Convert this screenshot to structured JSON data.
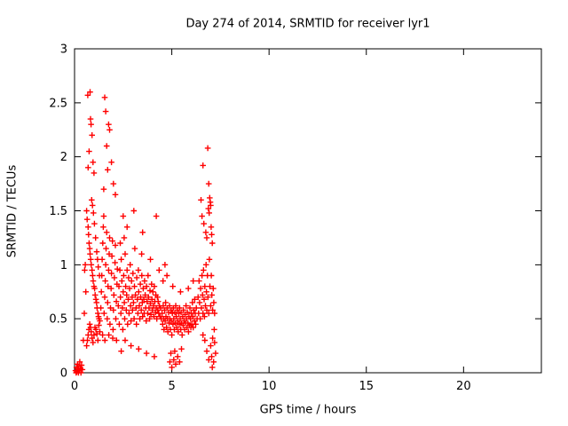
{
  "chart_data": {
    "type": "scatter",
    "title": "Day 274 of 2014, SRMTID for receiver lyr1",
    "xlabel": "GPS time / hours",
    "ylabel": "SRMTID / TECUs",
    "xlim": [
      0,
      24
    ],
    "ylim": [
      0,
      3
    ],
    "xticks": [
      {
        "v": 0,
        "label": "0"
      },
      {
        "v": 5,
        "label": "5"
      },
      {
        "v": 10,
        "label": "10"
      },
      {
        "v": 15,
        "label": "15"
      },
      {
        "v": 20,
        "label": "20"
      }
    ],
    "yticks": [
      {
        "v": 0,
        "label": "0"
      },
      {
        "v": 0.5,
        "label": "0.5"
      },
      {
        "v": 1,
        "label": "1"
      },
      {
        "v": 1.5,
        "label": "1.5"
      },
      {
        "v": 2,
        "label": "2"
      },
      {
        "v": 2.5,
        "label": "2.5"
      },
      {
        "v": 3,
        "label": "3"
      }
    ],
    "grid": false,
    "legend": "none",
    "marker": "plus",
    "marker_color": "#ff0000",
    "points": [
      [
        0.05,
        0.02
      ],
      [
        0.08,
        0.0
      ],
      [
        0.1,
        0.05
      ],
      [
        0.12,
        0.01
      ],
      [
        0.15,
        0.08
      ],
      [
        0.17,
        0.03
      ],
      [
        0.2,
        0.0
      ],
      [
        0.22,
        0.06
      ],
      [
        0.25,
        0.02
      ],
      [
        0.27,
        0.1
      ],
      [
        0.3,
        0.04
      ],
      [
        0.33,
        0.0
      ],
      [
        0.36,
        0.07
      ],
      [
        0.4,
        0.03
      ],
      [
        0.45,
        0.3
      ],
      [
        0.5,
        0.55
      ],
      [
        0.52,
        0.95
      ],
      [
        0.55,
        1.0
      ],
      [
        0.58,
        0.75
      ],
      [
        0.68,
        2.57
      ],
      [
        0.8,
        2.6
      ],
      [
        0.82,
        2.35
      ],
      [
        0.85,
        2.3
      ],
      [
        0.9,
        2.2
      ],
      [
        0.75,
        2.05
      ],
      [
        0.95,
        1.95
      ],
      [
        0.7,
        1.9
      ],
      [
        1.0,
        1.85
      ],
      [
        0.62,
        1.5
      ],
      [
        0.65,
        1.42
      ],
      [
        0.7,
        1.35
      ],
      [
        0.72,
        1.28
      ],
      [
        0.75,
        1.2
      ],
      [
        0.78,
        1.15
      ],
      [
        0.8,
        1.1
      ],
      [
        0.83,
        1.05
      ],
      [
        0.86,
        1.0
      ],
      [
        0.9,
        0.95
      ],
      [
        0.93,
        0.9
      ],
      [
        0.96,
        0.85
      ],
      [
        1.0,
        0.8
      ],
      [
        1.03,
        0.78
      ],
      [
        1.06,
        0.72
      ],
      [
        1.1,
        0.68
      ],
      [
        1.13,
        0.65
      ],
      [
        1.16,
        0.6
      ],
      [
        1.2,
        0.55
      ],
      [
        1.23,
        0.52
      ],
      [
        1.26,
        0.5
      ],
      [
        1.3,
        0.48
      ],
      [
        0.62,
        0.25
      ],
      [
        0.66,
        0.3
      ],
      [
        0.7,
        0.35
      ],
      [
        0.74,
        0.4
      ],
      [
        0.78,
        0.45
      ],
      [
        0.82,
        0.42
      ],
      [
        0.86,
        0.38
      ],
      [
        0.9,
        0.32
      ],
      [
        0.95,
        0.28
      ],
      [
        1.0,
        0.35
      ],
      [
        1.05,
        0.42
      ],
      [
        1.1,
        0.4
      ],
      [
        1.15,
        0.36
      ],
      [
        1.2,
        0.3
      ],
      [
        1.25,
        0.44
      ],
      [
        1.3,
        0.38
      ],
      [
        0.88,
        1.6
      ],
      [
        0.92,
        1.55
      ],
      [
        0.97,
        1.48
      ],
      [
        1.02,
        1.38
      ],
      [
        1.08,
        1.25
      ],
      [
        1.14,
        1.12
      ],
      [
        1.18,
        1.05
      ],
      [
        1.22,
        0.98
      ],
      [
        1.28,
        0.9
      ],
      [
        1.55,
        2.55
      ],
      [
        1.6,
        2.42
      ],
      [
        1.75,
        2.3
      ],
      [
        1.8,
        2.25
      ],
      [
        1.65,
        2.1
      ],
      [
        1.9,
        1.95
      ],
      [
        1.7,
        1.88
      ],
      [
        2.0,
        1.75
      ],
      [
        1.5,
        1.7
      ],
      [
        2.1,
        1.65
      ],
      [
        1.35,
        0.6
      ],
      [
        1.38,
        0.75
      ],
      [
        1.4,
        0.9
      ],
      [
        1.42,
        1.05
      ],
      [
        1.45,
        1.2
      ],
      [
        1.48,
        1.35
      ],
      [
        1.5,
        1.45
      ],
      [
        1.52,
        0.55
      ],
      [
        1.55,
        0.7
      ],
      [
        1.58,
        0.85
      ],
      [
        1.6,
        1.0
      ],
      [
        1.62,
        1.15
      ],
      [
        1.65,
        1.3
      ],
      [
        1.68,
        0.5
      ],
      [
        1.7,
        0.65
      ],
      [
        1.72,
        0.8
      ],
      [
        1.75,
        0.95
      ],
      [
        1.78,
        1.1
      ],
      [
        1.8,
        1.25
      ],
      [
        1.82,
        0.45
      ],
      [
        1.85,
        0.6
      ],
      [
        1.88,
        0.78
      ],
      [
        1.9,
        0.92
      ],
      [
        1.92,
        1.08
      ],
      [
        1.95,
        1.22
      ],
      [
        1.98,
        0.4
      ],
      [
        2.0,
        0.58
      ],
      [
        2.02,
        0.72
      ],
      [
        2.05,
        0.88
      ],
      [
        2.08,
        1.02
      ],
      [
        2.1,
        1.18
      ],
      [
        2.12,
        0.5
      ],
      [
        2.15,
        0.66
      ],
      [
        2.18,
        0.82
      ],
      [
        2.2,
        0.96
      ],
      [
        1.44,
        0.35
      ],
      [
        1.56,
        0.3
      ],
      [
        1.76,
        0.35
      ],
      [
        1.96,
        0.32
      ],
      [
        2.16,
        0.3
      ],
      [
        2.25,
        0.62
      ],
      [
        2.28,
        0.8
      ],
      [
        2.3,
        0.45
      ],
      [
        2.33,
        0.95
      ],
      [
        2.36,
        0.7
      ],
      [
        2.38,
        0.55
      ],
      [
        2.4,
        1.05
      ],
      [
        2.43,
        0.85
      ],
      [
        2.46,
        0.6
      ],
      [
        2.48,
        0.4
      ],
      [
        2.5,
        0.75
      ],
      [
        2.53,
        0.9
      ],
      [
        2.56,
        0.65
      ],
      [
        2.58,
        0.5
      ],
      [
        2.6,
        1.1
      ],
      [
        2.63,
        0.8
      ],
      [
        2.66,
        0.58
      ],
      [
        2.68,
        0.72
      ],
      [
        2.7,
        0.95
      ],
      [
        2.73,
        0.45
      ],
      [
        2.76,
        0.68
      ],
      [
        2.78,
        0.88
      ],
      [
        2.8,
        0.55
      ],
      [
        2.83,
        0.78
      ],
      [
        2.86,
        1.0
      ],
      [
        2.88,
        0.62
      ],
      [
        2.9,
        0.48
      ],
      [
        2.93,
        0.85
      ],
      [
        2.96,
        0.7
      ],
      [
        2.98,
        0.58
      ],
      [
        3.0,
        0.92
      ],
      [
        3.03,
        0.65
      ],
      [
        3.06,
        0.5
      ],
      [
        3.08,
        0.8
      ],
      [
        3.1,
        1.15
      ],
      [
        3.13,
        0.72
      ],
      [
        3.16,
        0.6
      ],
      [
        3.18,
        0.45
      ],
      [
        3.2,
        0.88
      ],
      [
        3.23,
        0.68
      ],
      [
        3.26,
        0.55
      ],
      [
        3.28,
        0.95
      ],
      [
        3.3,
        0.75
      ],
      [
        3.33,
        0.62
      ],
      [
        3.36,
        0.5
      ],
      [
        3.38,
        0.82
      ],
      [
        3.4,
        0.7
      ],
      [
        3.43,
        0.58
      ],
      [
        3.46,
        0.9
      ],
      [
        3.48,
        0.65
      ],
      [
        3.5,
        0.52
      ],
      [
        3.53,
        0.78
      ],
      [
        3.56,
        0.68
      ],
      [
        3.58,
        0.55
      ],
      [
        3.6,
        0.85
      ],
      [
        3.63,
        0.72
      ],
      [
        3.66,
        0.6
      ],
      [
        3.68,
        0.48
      ],
      [
        3.7,
        0.8
      ],
      [
        3.73,
        0.66
      ],
      [
        3.76,
        0.55
      ],
      [
        3.78,
        0.9
      ],
      [
        3.8,
        0.7
      ],
      [
        3.83,
        0.6
      ],
      [
        3.86,
        0.5
      ],
      [
        3.88,
        0.76
      ],
      [
        3.9,
        0.64
      ],
      [
        3.93,
        0.54
      ],
      [
        3.96,
        0.82
      ],
      [
        3.98,
        0.68
      ],
      [
        4.0,
        0.58
      ],
      [
        4.03,
        0.75
      ],
      [
        4.06,
        0.62
      ],
      [
        4.08,
        0.52
      ],
      [
        4.1,
        0.8
      ],
      [
        4.13,
        0.66
      ],
      [
        4.16,
        0.56
      ],
      [
        4.18,
        0.72
      ],
      [
        4.2,
        0.6
      ],
      [
        4.23,
        0.5
      ],
      [
        4.26,
        0.7
      ],
      [
        4.28,
        0.58
      ],
      [
        4.3,
        0.66
      ],
      [
        4.33,
        0.55
      ],
      [
        4.36,
        0.62
      ],
      [
        4.4,
        0.52
      ],
      [
        4.43,
        0.6
      ],
      [
        4.46,
        0.5
      ],
      [
        2.5,
        1.45
      ],
      [
        2.7,
        1.35
      ],
      [
        3.05,
        1.5
      ],
      [
        3.5,
        1.3
      ],
      [
        4.2,
        1.45
      ],
      [
        2.4,
        0.2
      ],
      [
        2.9,
        0.25
      ],
      [
        3.3,
        0.22
      ],
      [
        3.7,
        0.18
      ],
      [
        4.1,
        0.15
      ],
      [
        2.6,
        0.3
      ],
      [
        3.45,
        1.1
      ],
      [
        3.9,
        1.05
      ],
      [
        4.35,
        0.95
      ],
      [
        2.35,
        1.2
      ],
      [
        2.55,
        1.25
      ],
      [
        4.5,
        0.55
      ],
      [
        4.53,
        0.45
      ],
      [
        4.56,
        0.62
      ],
      [
        4.58,
        0.5
      ],
      [
        4.6,
        0.4
      ],
      [
        4.63,
        0.58
      ],
      [
        4.66,
        0.48
      ],
      [
        4.68,
        0.65
      ],
      [
        4.7,
        0.52
      ],
      [
        4.73,
        0.42
      ],
      [
        4.76,
        0.6
      ],
      [
        4.78,
        0.5
      ],
      [
        4.8,
        0.38
      ],
      [
        4.83,
        0.56
      ],
      [
        4.86,
        0.46
      ],
      [
        4.88,
        0.62
      ],
      [
        4.9,
        0.5
      ],
      [
        4.93,
        0.4
      ],
      [
        4.96,
        0.58
      ],
      [
        4.98,
        0.48
      ],
      [
        5.0,
        0.35
      ],
      [
        5.03,
        0.55
      ],
      [
        5.06,
        0.45
      ],
      [
        5.08,
        0.6
      ],
      [
        5.1,
        0.5
      ],
      [
        5.13,
        0.4
      ],
      [
        5.16,
        0.56
      ],
      [
        5.18,
        0.46
      ],
      [
        5.2,
        0.62
      ],
      [
        5.23,
        0.52
      ],
      [
        5.26,
        0.42
      ],
      [
        5.28,
        0.58
      ],
      [
        5.3,
        0.48
      ],
      [
        5.33,
        0.38
      ],
      [
        5.36,
        0.55
      ],
      [
        5.38,
        0.45
      ],
      [
        5.4,
        0.6
      ],
      [
        5.43,
        0.5
      ],
      [
        5.46,
        0.4
      ],
      [
        5.48,
        0.56
      ],
      [
        5.5,
        0.46
      ],
      [
        5.53,
        0.35
      ],
      [
        5.56,
        0.52
      ],
      [
        5.58,
        0.44
      ],
      [
        5.6,
        0.58
      ],
      [
        5.63,
        0.48
      ],
      [
        5.66,
        0.4
      ],
      [
        5.68,
        0.54
      ],
      [
        5.7,
        0.46
      ],
      [
        5.73,
        0.62
      ],
      [
        5.76,
        0.5
      ],
      [
        5.78,
        0.42
      ],
      [
        5.8,
        0.56
      ],
      [
        5.83,
        0.46
      ],
      [
        5.86,
        0.38
      ],
      [
        5.88,
        0.52
      ],
      [
        5.9,
        0.44
      ],
      [
        5.93,
        0.6
      ],
      [
        5.96,
        0.5
      ],
      [
        5.98,
        0.42
      ],
      [
        6.0,
        0.55
      ],
      [
        6.03,
        0.45
      ],
      [
        6.06,
        0.65
      ],
      [
        6.08,
        0.52
      ],
      [
        6.1,
        0.42
      ],
      [
        6.13,
        0.58
      ],
      [
        6.16,
        0.48
      ],
      [
        6.18,
        0.68
      ],
      [
        6.2,
        0.55
      ],
      [
        6.23,
        0.45
      ],
      [
        6.26,
        0.6
      ],
      [
        6.3,
        0.5
      ],
      [
        4.9,
        0.1
      ],
      [
        5.0,
        0.05
      ],
      [
        5.1,
        0.12
      ],
      [
        5.2,
        0.08
      ],
      [
        5.3,
        0.15
      ],
      [
        5.15,
        0.2
      ],
      [
        4.95,
        0.18
      ],
      [
        5.4,
        0.1
      ],
      [
        5.5,
        0.22
      ],
      [
        4.55,
        0.85
      ],
      [
        4.75,
        0.9
      ],
      [
        5.05,
        0.8
      ],
      [
        5.45,
        0.75
      ],
      [
        5.85,
        0.78
      ],
      [
        6.1,
        0.85
      ],
      [
        4.65,
        1.0
      ],
      [
        6.85,
        2.08
      ],
      [
        6.6,
        1.92
      ],
      [
        6.9,
        1.75
      ],
      [
        6.5,
        1.6
      ],
      [
        6.95,
        1.62
      ],
      [
        7.0,
        1.55
      ],
      [
        6.98,
        1.58
      ],
      [
        6.55,
        1.45
      ],
      [
        6.65,
        1.38
      ],
      [
        6.75,
        1.3
      ],
      [
        6.8,
        1.25
      ],
      [
        6.88,
        1.52
      ],
      [
        6.92,
        1.48
      ],
      [
        7.02,
        1.35
      ],
      [
        7.05,
        1.28
      ],
      [
        7.08,
        1.2
      ],
      [
        6.35,
        0.7
      ],
      [
        6.38,
        0.55
      ],
      [
        6.4,
        0.85
      ],
      [
        6.43,
        0.65
      ],
      [
        6.46,
        0.5
      ],
      [
        6.48,
        0.78
      ],
      [
        6.52,
        0.6
      ],
      [
        6.55,
        0.9
      ],
      [
        6.58,
        0.72
      ],
      [
        6.6,
        0.55
      ],
      [
        6.63,
        0.95
      ],
      [
        6.66,
        0.68
      ],
      [
        6.68,
        0.52
      ],
      [
        6.7,
        0.8
      ],
      [
        6.73,
        0.62
      ],
      [
        6.76,
        1.0
      ],
      [
        6.78,
        0.75
      ],
      [
        6.8,
        0.58
      ],
      [
        6.83,
        0.9
      ],
      [
        6.86,
        0.7
      ],
      [
        6.9,
        0.55
      ],
      [
        6.93,
        1.05
      ],
      [
        6.96,
        0.8
      ],
      [
        7.0,
        0.62
      ],
      [
        7.03,
        0.9
      ],
      [
        7.06,
        0.72
      ],
      [
        7.1,
        0.58
      ],
      [
        7.13,
        0.78
      ],
      [
        7.16,
        0.65
      ],
      [
        7.2,
        0.55
      ],
      [
        6.7,
        0.3
      ],
      [
        6.8,
        0.2
      ],
      [
        6.9,
        0.12
      ],
      [
        7.0,
        0.25
      ],
      [
        7.05,
        0.15
      ],
      [
        7.1,
        0.32
      ],
      [
        7.15,
        0.1
      ],
      [
        7.2,
        0.28
      ],
      [
        7.25,
        0.18
      ],
      [
        6.6,
        0.35
      ],
      [
        7.08,
        0.05
      ],
      [
        7.18,
        0.4
      ]
    ]
  }
}
